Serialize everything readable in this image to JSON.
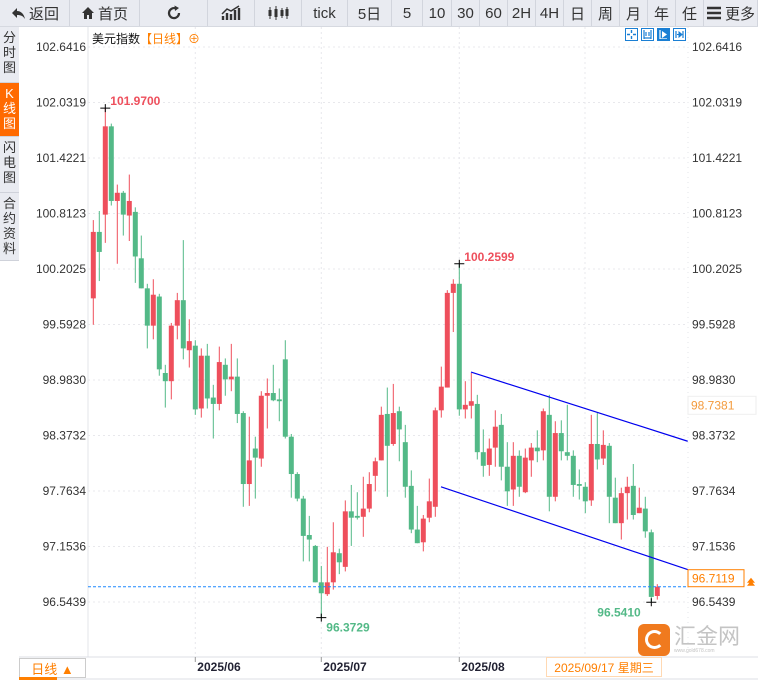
{
  "toolbar": {
    "buttons": [
      {
        "label": "返回",
        "icon": "back-arrow-icon"
      },
      {
        "label": "首页",
        "icon": "home-icon"
      },
      {
        "label": "",
        "icon": "refresh-icon"
      },
      {
        "label": "",
        "icon": "indicator-chart-icon"
      },
      {
        "label": "",
        "icon": "candlestick-icon"
      },
      {
        "label": "tick"
      },
      {
        "label": "5日"
      },
      {
        "label": "5"
      },
      {
        "label": "10"
      },
      {
        "label": "30"
      },
      {
        "label": "60"
      },
      {
        "label": "2H"
      },
      {
        "label": "4H"
      },
      {
        "label": "日"
      },
      {
        "label": "周"
      },
      {
        "label": "月"
      },
      {
        "label": "年"
      },
      {
        "label": "任"
      },
      {
        "label": "更多",
        "icon": "menu-icon"
      }
    ]
  },
  "side_tabs": [
    {
      "label": "分时图",
      "active": false
    },
    {
      "label": "K线图",
      "active": true
    },
    {
      "label": "闪电图",
      "active": false
    },
    {
      "label": "合约资料",
      "active": false
    }
  ],
  "chart_header": {
    "name": "美元指数",
    "interval": "【日线】",
    "icon": "crosshair-circle-icon"
  },
  "chart_tools": [
    "crosshair-icon",
    "fit-range-icon",
    "play-right-icon",
    "scroll-end-icon"
  ],
  "period_selector": {
    "label": "日线 ▲"
  },
  "current_date": "2025/09/17 星期三",
  "watermark": {
    "text": "汇金网",
    "url": "www.gold678.com"
  },
  "colors": {
    "up": "#ee4f5c",
    "down": "#53b987",
    "channel": "#0000ee",
    "current_line": "#1e88ff",
    "accent": "#ff7f00"
  },
  "chart_data": {
    "type": "candlestick",
    "ylim": [
      96.5439,
      102.6416
    ],
    "y_ticks": [
      "102.6416",
      "102.0319",
      "101.4221",
      "100.8123",
      "100.2025",
      "99.5928",
      "98.9830",
      "98.3732",
      "97.7634",
      "97.1536",
      "96.5439"
    ],
    "x_ticks": [
      {
        "index": 17,
        "label": "2025/06"
      },
      {
        "index": 38,
        "label": "2025/07"
      },
      {
        "index": 61,
        "label": "2025/08"
      }
    ],
    "grid": true,
    "ohlc": [
      [
        99.88,
        100.74,
        99.59,
        100.61
      ],
      [
        100.61,
        100.84,
        100.07,
        100.39
      ],
      [
        100.8,
        101.97,
        100.49,
        101.77
      ],
      [
        101.77,
        101.8,
        100.9,
        100.95
      ],
      [
        100.95,
        101.13,
        100.26,
        101.04
      ],
      [
        101.04,
        101.06,
        100.57,
        100.8
      ],
      [
        100.79,
        101.24,
        100.51,
        100.95
      ],
      [
        100.83,
        100.88,
        100.05,
        100.34
      ],
      [
        100.32,
        100.57,
        99.99,
        99.99
      ],
      [
        99.99,
        100.04,
        99.33,
        99.58
      ],
      [
        99.58,
        100.09,
        99.43,
        99.92
      ],
      [
        99.9,
        99.93,
        99.03,
        99.1
      ],
      [
        99.06,
        99.15,
        98.68,
        98.97
      ],
      [
        98.97,
        99.61,
        98.77,
        99.58
      ],
      [
        99.58,
        99.94,
        99.43,
        99.86
      ],
      [
        99.86,
        100.52,
        99.21,
        99.33
      ],
      [
        99.31,
        99.65,
        99.12,
        99.41
      ],
      [
        99.36,
        99.42,
        98.6,
        98.66
      ],
      [
        98.67,
        99.33,
        98.57,
        99.25
      ],
      [
        99.25,
        99.38,
        98.67,
        98.78
      ],
      [
        98.79,
        98.93,
        98.34,
        98.72
      ],
      [
        98.72,
        99.35,
        98.65,
        99.18
      ],
      [
        99.15,
        99.22,
        98.81,
        98.99
      ],
      [
        98.99,
        99.38,
        98.86,
        99.02
      ],
      [
        99.02,
        99.22,
        98.51,
        98.61
      ],
      [
        98.62,
        98.64,
        97.59,
        97.84
      ],
      [
        97.84,
        98.58,
        97.6,
        98.1
      ],
      [
        98.23,
        98.36,
        97.68,
        98.13
      ],
      [
        98.12,
        98.86,
        98.03,
        98.81
      ],
      [
        98.81,
        99.0,
        98.45,
        98.84
      ],
      [
        98.84,
        99.15,
        98.75,
        98.76
      ],
      [
        98.77,
        98.89,
        98.53,
        98.75
      ],
      [
        99.21,
        99.42,
        98.34,
        98.36
      ],
      [
        98.36,
        98.39,
        97.69,
        97.95
      ],
      [
        97.95,
        97.97,
        97.65,
        97.68
      ],
      [
        97.68,
        97.71,
        96.99,
        97.27
      ],
      [
        97.28,
        97.49,
        96.99,
        97.23
      ],
      [
        97.16,
        97.17,
        96.76,
        96.76
      ],
      [
        96.76,
        96.94,
        96.3729,
        96.64
      ],
      [
        96.63,
        97.15,
        96.61,
        96.76
      ],
      [
        96.76,
        97.42,
        96.68,
        97.09
      ],
      [
        97.08,
        97.13,
        96.85,
        96.98
      ],
      [
        96.93,
        97.66,
        96.88,
        97.54
      ],
      [
        97.54,
        97.83,
        97.16,
        97.47
      ],
      [
        97.49,
        97.75,
        97.45,
        97.47
      ],
      [
        97.48,
        97.92,
        97.26,
        97.57
      ],
      [
        97.57,
        97.97,
        97.53,
        97.84
      ],
      [
        97.93,
        98.13,
        97.76,
        98.09
      ],
      [
        98.1,
        98.69,
        98.1,
        98.6
      ],
      [
        98.61,
        98.9,
        97.7,
        98.26
      ],
      [
        98.28,
        98.94,
        98.26,
        98.62
      ],
      [
        98.64,
        98.69,
        98.09,
        98.44
      ],
      [
        98.3,
        98.49,
        97.69,
        97.81
      ],
      [
        97.82,
        97.99,
        97.3,
        97.34
      ],
      [
        97.34,
        97.6,
        97.19,
        97.19
      ],
      [
        97.2,
        97.5,
        97.1,
        97.46
      ],
      [
        97.47,
        97.9,
        97.42,
        97.65
      ],
      [
        97.59,
        98.68,
        97.48,
        98.65
      ],
      [
        98.65,
        99.13,
        98.57,
        98.91
      ],
      [
        98.9,
        99.97,
        98.9,
        99.94
      ],
      [
        99.94,
        100.09,
        99.51,
        100.04
      ],
      [
        100.04,
        100.2599,
        98.59,
        98.66
      ],
      [
        98.66,
        98.97,
        98.56,
        98.71
      ],
      [
        98.7,
        99.06,
        98.56,
        98.75
      ],
      [
        98.72,
        98.82,
        98.11,
        98.19
      ],
      [
        98.19,
        98.44,
        97.92,
        98.04
      ],
      [
        98.05,
        98.34,
        97.93,
        98.23
      ],
      [
        98.24,
        98.65,
        98.03,
        98.47
      ],
      [
        98.49,
        98.61,
        97.88,
        98.03
      ],
      [
        98.03,
        98.3,
        97.6,
        97.76
      ],
      [
        97.78,
        98.3,
        97.6,
        98.15
      ],
      [
        98.15,
        98.21,
        97.7,
        97.81
      ],
      [
        97.75,
        98.23,
        97.74,
        98.13
      ],
      [
        98.1,
        98.29,
        97.92,
        98.24
      ],
      [
        98.24,
        98.43,
        98.08,
        98.2
      ],
      [
        98.21,
        98.67,
        98.1,
        98.64
      ],
      [
        98.6,
        98.82,
        97.54,
        97.7
      ],
      [
        97.7,
        98.53,
        97.65,
        98.4
      ],
      [
        98.4,
        98.54,
        98.1,
        98.2
      ],
      [
        98.19,
        98.71,
        98.1,
        98.15
      ],
      [
        98.15,
        98.21,
        97.7,
        97.83
      ],
      [
        97.84,
        98.0,
        97.67,
        97.82
      ],
      [
        97.81,
        97.86,
        97.52,
        97.65
      ],
      [
        97.66,
        98.6,
        97.6,
        98.28
      ],
      [
        98.28,
        98.62,
        98.0,
        98.11
      ],
      [
        98.12,
        98.43,
        98.05,
        98.27
      ],
      [
        98.26,
        98.29,
        97.41,
        97.7
      ],
      [
        97.69,
        97.91,
        97.41,
        97.41
      ],
      [
        97.41,
        97.8,
        97.23,
        97.74
      ],
      [
        97.74,
        97.92,
        97.45,
        97.81
      ],
      [
        97.82,
        98.06,
        97.45,
        97.5
      ],
      [
        97.52,
        97.8,
        97.52,
        97.58
      ],
      [
        97.57,
        97.7,
        97.25,
        97.32
      ],
      [
        97.31,
        97.34,
        96.541,
        96.6
      ],
      [
        96.61,
        96.74,
        96.57,
        96.7119
      ]
    ],
    "annotations": [
      {
        "index": 2,
        "price": 101.97,
        "label": "101.9700",
        "type": "high"
      },
      {
        "index": 61,
        "price": 100.2599,
        "label": "100.2599",
        "type": "high"
      },
      {
        "index": 38,
        "price": 96.3729,
        "label": "96.3729",
        "type": "low"
      },
      {
        "index": 93,
        "price": 96.541,
        "label": "96.5410",
        "type": "low"
      }
    ],
    "trendlines": [
      {
        "from": [
          62.95,
          99.07
        ],
        "to": [
          99.07,
          98.31
        ]
      },
      {
        "from": [
          57.95,
          97.81
        ],
        "to": [
          99.07,
          96.9
        ]
      }
    ],
    "current_price": {
      "value": 96.7119,
      "label": "96.7119"
    },
    "marker_price": {
      "value": 98.7381,
      "label": "98.7381"
    }
  }
}
